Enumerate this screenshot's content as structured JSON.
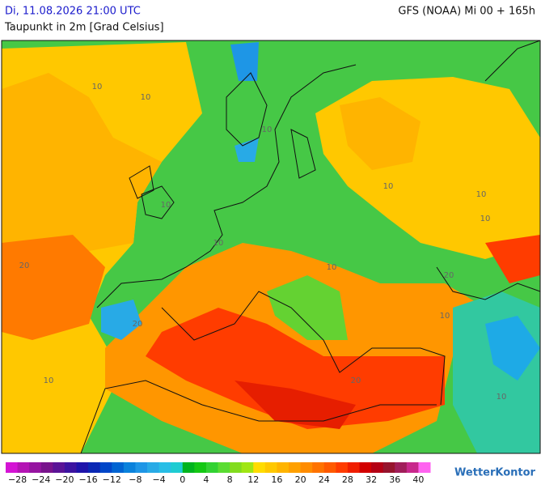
{
  "header": {
    "datetime": "Di, 11.08.2026 21:00 UTC",
    "variable": "Taupunkt in 2m [Grad Celsius]",
    "model_run": "GFS (NOAA) Mi 00 + 165h"
  },
  "map": {
    "contour_labels": [
      "10",
      "10",
      "10",
      "10",
      "10",
      "10",
      "10",
      "20",
      "20",
      "20",
      "10",
      "10",
      "10",
      "20",
      "10",
      "10"
    ]
  },
  "legend": {
    "range": [
      -30,
      42
    ],
    "colors": [
      "#d414d4",
      "#b414b4",
      "#9614a0",
      "#78148c",
      "#5a1496",
      "#3c14a0",
      "#1e14aa",
      "#0a28b4",
      "#0046c8",
      "#0064d2",
      "#0a82dc",
      "#1e96e6",
      "#28aae6",
      "#28bee6",
      "#1eccd2",
      "#00b41e",
      "#14c814",
      "#32d232",
      "#5adc32",
      "#82dc1e",
      "#a0e614",
      "#ffdc00",
      "#ffc800",
      "#ffb400",
      "#ffa000",
      "#ff8c00",
      "#ff7300",
      "#ff5a00",
      "#ff3c00",
      "#f01e00",
      "#d20000",
      "#b40014",
      "#96142d",
      "#a01e5a",
      "#c8288c",
      "#ff64f0"
    ],
    "ticks": [
      {
        "value": -28,
        "label": "−28"
      },
      {
        "value": -24,
        "label": "−24"
      },
      {
        "value": -20,
        "label": "−20"
      },
      {
        "value": -16,
        "label": "−16"
      },
      {
        "value": -12,
        "label": "−12"
      },
      {
        "value": -8,
        "label": "−8"
      },
      {
        "value": -4,
        "label": "−4"
      },
      0,
      4,
      8,
      12,
      16,
      20,
      24,
      28,
      32,
      36,
      40
    ]
  },
  "brand": "WetterKontor"
}
